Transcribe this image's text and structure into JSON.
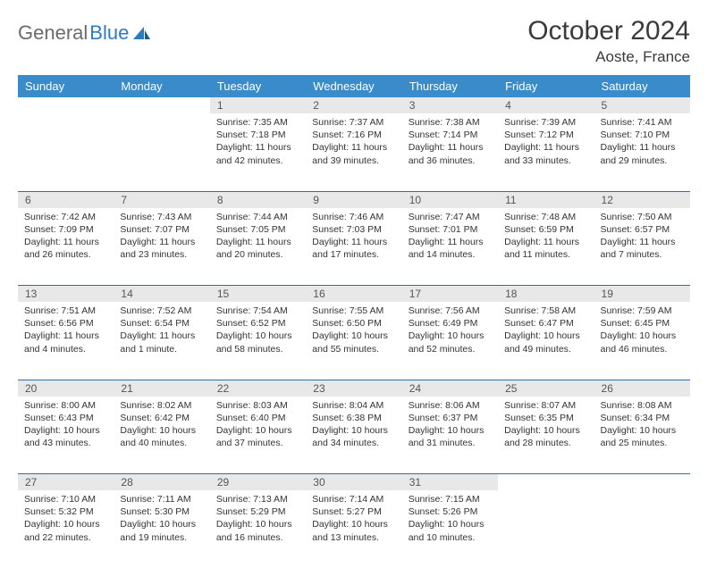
{
  "brand": {
    "word1": "General",
    "word2": "Blue"
  },
  "title": "October 2024",
  "location": "Aoste, France",
  "style": {
    "header_bg": "#3a8bc9",
    "header_fg": "#ffffff",
    "daynum_bg": "#e8e8e8",
    "row_border": "#2d6fa8",
    "logo_gray": "#6b6b6b",
    "logo_blue": "#2d7bc0",
    "title_fontsize": 30,
    "location_fontsize": 17,
    "header_fontsize": 13,
    "daynum_fontsize": 12,
    "body_fontsize": 10.5
  },
  "days_of_week": [
    "Sunday",
    "Monday",
    "Tuesday",
    "Wednesday",
    "Thursday",
    "Friday",
    "Saturday"
  ],
  "weeks": [
    {
      "cells": [
        {
          "empty": true
        },
        {
          "empty": true
        },
        {
          "num": "1",
          "sunrise": "Sunrise: 7:35 AM",
          "sunset": "Sunset: 7:18 PM",
          "daylight": "Daylight: 11 hours and 42 minutes."
        },
        {
          "num": "2",
          "sunrise": "Sunrise: 7:37 AM",
          "sunset": "Sunset: 7:16 PM",
          "daylight": "Daylight: 11 hours and 39 minutes."
        },
        {
          "num": "3",
          "sunrise": "Sunrise: 7:38 AM",
          "sunset": "Sunset: 7:14 PM",
          "daylight": "Daylight: 11 hours and 36 minutes."
        },
        {
          "num": "4",
          "sunrise": "Sunrise: 7:39 AM",
          "sunset": "Sunset: 7:12 PM",
          "daylight": "Daylight: 11 hours and 33 minutes."
        },
        {
          "num": "5",
          "sunrise": "Sunrise: 7:41 AM",
          "sunset": "Sunset: 7:10 PM",
          "daylight": "Daylight: 11 hours and 29 minutes."
        }
      ]
    },
    {
      "cells": [
        {
          "num": "6",
          "sunrise": "Sunrise: 7:42 AM",
          "sunset": "Sunset: 7:09 PM",
          "daylight": "Daylight: 11 hours and 26 minutes."
        },
        {
          "num": "7",
          "sunrise": "Sunrise: 7:43 AM",
          "sunset": "Sunset: 7:07 PM",
          "daylight": "Daylight: 11 hours and 23 minutes."
        },
        {
          "num": "8",
          "sunrise": "Sunrise: 7:44 AM",
          "sunset": "Sunset: 7:05 PM",
          "daylight": "Daylight: 11 hours and 20 minutes."
        },
        {
          "num": "9",
          "sunrise": "Sunrise: 7:46 AM",
          "sunset": "Sunset: 7:03 PM",
          "daylight": "Daylight: 11 hours and 17 minutes."
        },
        {
          "num": "10",
          "sunrise": "Sunrise: 7:47 AM",
          "sunset": "Sunset: 7:01 PM",
          "daylight": "Daylight: 11 hours and 14 minutes."
        },
        {
          "num": "11",
          "sunrise": "Sunrise: 7:48 AM",
          "sunset": "Sunset: 6:59 PM",
          "daylight": "Daylight: 11 hours and 11 minutes."
        },
        {
          "num": "12",
          "sunrise": "Sunrise: 7:50 AM",
          "sunset": "Sunset: 6:57 PM",
          "daylight": "Daylight: 11 hours and 7 minutes."
        }
      ]
    },
    {
      "cells": [
        {
          "num": "13",
          "sunrise": "Sunrise: 7:51 AM",
          "sunset": "Sunset: 6:56 PM",
          "daylight": "Daylight: 11 hours and 4 minutes."
        },
        {
          "num": "14",
          "sunrise": "Sunrise: 7:52 AM",
          "sunset": "Sunset: 6:54 PM",
          "daylight": "Daylight: 11 hours and 1 minute."
        },
        {
          "num": "15",
          "sunrise": "Sunrise: 7:54 AM",
          "sunset": "Sunset: 6:52 PM",
          "daylight": "Daylight: 10 hours and 58 minutes."
        },
        {
          "num": "16",
          "sunrise": "Sunrise: 7:55 AM",
          "sunset": "Sunset: 6:50 PM",
          "daylight": "Daylight: 10 hours and 55 minutes."
        },
        {
          "num": "17",
          "sunrise": "Sunrise: 7:56 AM",
          "sunset": "Sunset: 6:49 PM",
          "daylight": "Daylight: 10 hours and 52 minutes."
        },
        {
          "num": "18",
          "sunrise": "Sunrise: 7:58 AM",
          "sunset": "Sunset: 6:47 PM",
          "daylight": "Daylight: 10 hours and 49 minutes."
        },
        {
          "num": "19",
          "sunrise": "Sunrise: 7:59 AM",
          "sunset": "Sunset: 6:45 PM",
          "daylight": "Daylight: 10 hours and 46 minutes."
        }
      ]
    },
    {
      "cells": [
        {
          "num": "20",
          "sunrise": "Sunrise: 8:00 AM",
          "sunset": "Sunset: 6:43 PM",
          "daylight": "Daylight: 10 hours and 43 minutes."
        },
        {
          "num": "21",
          "sunrise": "Sunrise: 8:02 AM",
          "sunset": "Sunset: 6:42 PM",
          "daylight": "Daylight: 10 hours and 40 minutes."
        },
        {
          "num": "22",
          "sunrise": "Sunrise: 8:03 AM",
          "sunset": "Sunset: 6:40 PM",
          "daylight": "Daylight: 10 hours and 37 minutes."
        },
        {
          "num": "23",
          "sunrise": "Sunrise: 8:04 AM",
          "sunset": "Sunset: 6:38 PM",
          "daylight": "Daylight: 10 hours and 34 minutes."
        },
        {
          "num": "24",
          "sunrise": "Sunrise: 8:06 AM",
          "sunset": "Sunset: 6:37 PM",
          "daylight": "Daylight: 10 hours and 31 minutes."
        },
        {
          "num": "25",
          "sunrise": "Sunrise: 8:07 AM",
          "sunset": "Sunset: 6:35 PM",
          "daylight": "Daylight: 10 hours and 28 minutes."
        },
        {
          "num": "26",
          "sunrise": "Sunrise: 8:08 AM",
          "sunset": "Sunset: 6:34 PM",
          "daylight": "Daylight: 10 hours and 25 minutes."
        }
      ]
    },
    {
      "cells": [
        {
          "num": "27",
          "sunrise": "Sunrise: 7:10 AM",
          "sunset": "Sunset: 5:32 PM",
          "daylight": "Daylight: 10 hours and 22 minutes."
        },
        {
          "num": "28",
          "sunrise": "Sunrise: 7:11 AM",
          "sunset": "Sunset: 5:30 PM",
          "daylight": "Daylight: 10 hours and 19 minutes."
        },
        {
          "num": "29",
          "sunrise": "Sunrise: 7:13 AM",
          "sunset": "Sunset: 5:29 PM",
          "daylight": "Daylight: 10 hours and 16 minutes."
        },
        {
          "num": "30",
          "sunrise": "Sunrise: 7:14 AM",
          "sunset": "Sunset: 5:27 PM",
          "daylight": "Daylight: 10 hours and 13 minutes."
        },
        {
          "num": "31",
          "sunrise": "Sunrise: 7:15 AM",
          "sunset": "Sunset: 5:26 PM",
          "daylight": "Daylight: 10 hours and 10 minutes."
        },
        {
          "empty": true
        },
        {
          "empty": true
        }
      ]
    }
  ]
}
